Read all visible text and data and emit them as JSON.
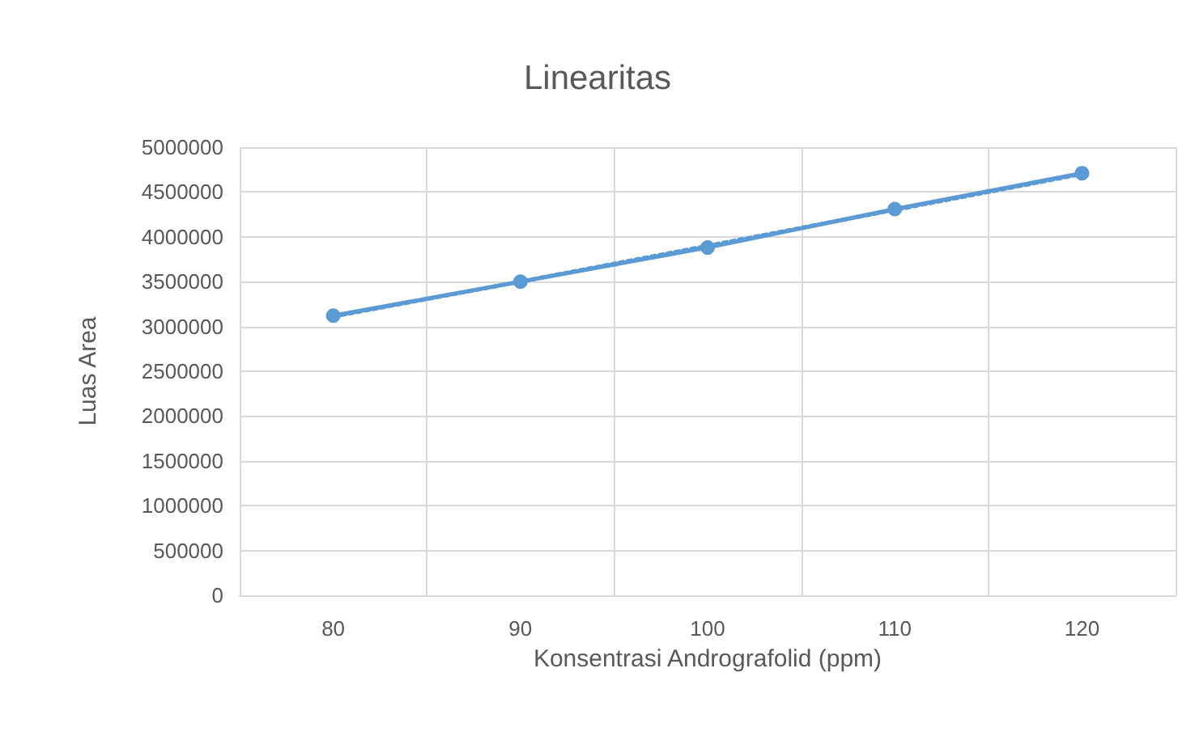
{
  "chart_data": {
    "type": "line",
    "title": "Linearitas",
    "xlabel": "Konsentrasi Andrografolid (ppm)",
    "ylabel": "Luas Area",
    "categories": [
      "80",
      "90",
      "100",
      "110",
      "120"
    ],
    "series": [
      {
        "color": "#5b9bd5",
        "values": [
          3120000,
          3500000,
          3880000,
          4310000,
          4710000
        ],
        "marker": "circle",
        "line_style": "solid"
      },
      {
        "type": "line",
        "x": [
          "80",
          "90",
          "100",
          "110",
          "120"
        ],
        "color": "#5b9bd5",
        "values": [
          3110000,
          3500000,
          3900000,
          4300000,
          4700000
        ],
        "marker": "none",
        "line_style": "dotted"
      }
    ],
    "ylim": [
      0,
      5000000
    ],
    "yticks": [
      0,
      500000,
      1000000,
      1500000,
      2000000,
      2500000,
      3000000,
      3500000,
      4000000,
      4500000,
      5000000
    ],
    "grid": true
  }
}
